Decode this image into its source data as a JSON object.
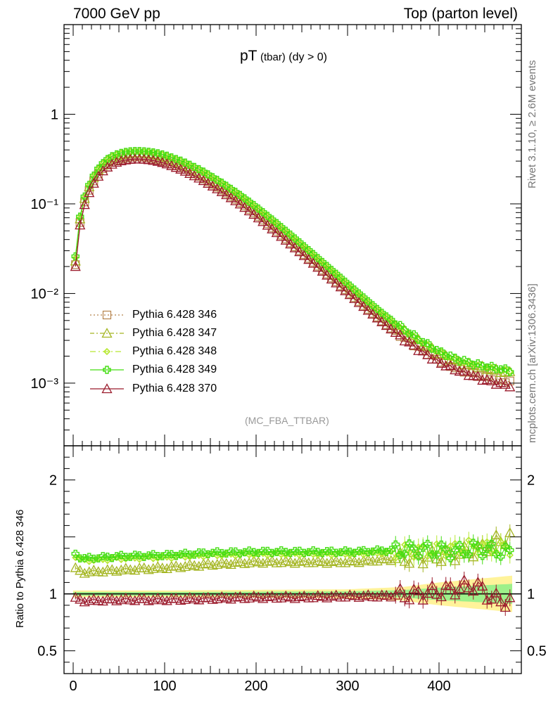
{
  "header": {
    "left": "7000 GeV pp",
    "right": "Top (parton level)"
  },
  "side_labels": {
    "rivet": "Rivet 3.1.10, ≥ 2.6M events",
    "mcplots": "mcplots.cern.ch [arXiv:1306.3436]"
  },
  "plot_title": {
    "main": "pT",
    "sub": "(tbar)",
    "rest": "(dy > 0)"
  },
  "analysis_tag": "(MC_FBA_TTBAR)",
  "chart_data": [
    {
      "type": "line",
      "panel": "main",
      "scale": "log",
      "ylim": [
        0.0002,
        10
      ],
      "xlim": [
        -10,
        490
      ],
      "grid": false,
      "legend_placement": "bottom-left",
      "y_ticks": [
        {
          "value": 1,
          "label": "1"
        },
        {
          "value": 0.1,
          "label": "10⁻¹"
        },
        {
          "value": 0.01,
          "label": "10⁻²"
        },
        {
          "value": 0.001,
          "label": "10⁻³"
        }
      ],
      "x_knots": [
        2.5,
        7.5,
        12.5,
        20,
        30,
        40,
        50,
        60,
        70,
        80,
        90,
        100,
        120,
        140,
        160,
        180,
        200,
        220,
        240,
        260,
        280,
        300,
        320,
        340,
        360,
        380,
        400,
        420,
        440,
        460,
        477.5
      ],
      "series": [
        {
          "name": "Pythia 6.428 346",
          "color": "#b5834a",
          "dash": "2,3",
          "marker": "square",
          "knot_values": [
            0.021,
            0.062,
            0.105,
            0.165,
            0.235,
            0.285,
            0.315,
            0.33,
            0.335,
            0.33,
            0.318,
            0.3,
            0.25,
            0.197,
            0.148,
            0.108,
            0.076,
            0.052,
            0.035,
            0.0235,
            0.0157,
            0.0105,
            0.007,
            0.0047,
            0.0033,
            0.0024,
            0.0018,
            0.00145,
            0.00125,
            0.00112,
            0.00102
          ]
        },
        {
          "name": "Pythia 6.428 347",
          "color": "#a3b520",
          "dash": "6,3,2,3",
          "marker": "triangle",
          "knot_values": [
            0.023,
            0.068,
            0.115,
            0.18,
            0.26,
            0.32,
            0.35,
            0.368,
            0.373,
            0.368,
            0.355,
            0.336,
            0.282,
            0.225,
            0.17,
            0.125,
            0.088,
            0.061,
            0.041,
            0.0275,
            0.0183,
            0.0122,
            0.0081,
            0.0055,
            0.0039,
            0.00285,
            0.00215,
            0.00175,
            0.00155,
            0.0014,
            0.0013
          ]
        },
        {
          "name": "Pythia 6.428 348",
          "color": "#b7e832",
          "dash": "8,4,2,4",
          "marker": "diamond",
          "knot_values": [
            0.025,
            0.07,
            0.118,
            0.185,
            0.266,
            0.328,
            0.36,
            0.378,
            0.384,
            0.379,
            0.366,
            0.347,
            0.292,
            0.233,
            0.176,
            0.129,
            0.091,
            0.063,
            0.0425,
            0.0284,
            0.0189,
            0.0126,
            0.0084,
            0.0057,
            0.004,
            0.0029,
            0.0022,
            0.0018,
            0.0016,
            0.00145,
            0.00135
          ]
        },
        {
          "name": "Pythia 6.428 349",
          "color": "#44dd12",
          "dash": "",
          "marker": "cross",
          "knot_values": [
            0.026,
            0.072,
            0.121,
            0.189,
            0.271,
            0.333,
            0.366,
            0.385,
            0.39,
            0.385,
            0.372,
            0.352,
            0.297,
            0.237,
            0.179,
            0.131,
            0.093,
            0.064,
            0.0433,
            0.029,
            0.0193,
            0.0129,
            0.0086,
            0.0058,
            0.0041,
            0.003,
            0.00225,
            0.00185,
            0.00162,
            0.00148,
            0.00138
          ]
        },
        {
          "name": "Pythia 6.428 370",
          "color": "#9b1b2c",
          "dash": "",
          "marker": "triangle",
          "knot_values": [
            0.02,
            0.058,
            0.098,
            0.155,
            0.222,
            0.27,
            0.298,
            0.312,
            0.317,
            0.313,
            0.302,
            0.285,
            0.238,
            0.188,
            0.142,
            0.104,
            0.073,
            0.05,
            0.0339,
            0.0228,
            0.0152,
            0.0102,
            0.0068,
            0.0046,
            0.0032,
            0.0023,
            0.00172,
            0.0014,
            0.00118,
            0.00102,
            0.00094
          ]
        }
      ]
    },
    {
      "type": "line",
      "panel": "ratio",
      "ylabel": "Ratio to Pythia 6.428 346",
      "ylim": [
        0.3,
        2.3
      ],
      "xlim": [
        -10,
        490
      ],
      "reference_line": 1,
      "y_ticks": [
        {
          "value": 0.5,
          "label": "0.5"
        },
        {
          "value": 1,
          "label": "1"
        },
        {
          "value": 2,
          "label": "2"
        }
      ],
      "x_ticks": [
        {
          "value": 0,
          "label": "0"
        },
        {
          "value": 100,
          "label": "100"
        },
        {
          "value": 200,
          "label": "200"
        },
        {
          "value": 300,
          "label": "300"
        },
        {
          "value": 400,
          "label": "400"
        }
      ],
      "band": {
        "color_outer": "#fff39a",
        "color_inner": "#9ef08a",
        "x_knots": [
          0,
          100,
          200,
          300,
          360,
          400,
          440,
          480
        ],
        "half_width": [
          0.03,
          0.03,
          0.035,
          0.04,
          0.06,
          0.1,
          0.13,
          0.16
        ]
      },
      "series": [
        {
          "name": "Pythia 6.428 347",
          "color": "#a3b520",
          "marker": "triangle",
          "x_knots": [
            2.5,
            10,
            50,
            100,
            150,
            200,
            250,
            300,
            340,
            380,
            400,
            420,
            440,
            460,
            477.5
          ],
          "knot_values": [
            1.22,
            1.19,
            1.21,
            1.23,
            1.26,
            1.28,
            1.28,
            1.28,
            1.3,
            1.32,
            1.33,
            1.35,
            1.38,
            1.45,
            1.5
          ]
        },
        {
          "name": "Pythia 6.428 348",
          "color": "#b7e832",
          "marker": "diamond",
          "x_knots": [
            2.5,
            10,
            50,
            100,
            150,
            200,
            250,
            300,
            340,
            380,
            400,
            420,
            440,
            460,
            477.5
          ],
          "knot_values": [
            1.33,
            1.29,
            1.31,
            1.32,
            1.34,
            1.35,
            1.35,
            1.35,
            1.36,
            1.38,
            1.38,
            1.4,
            1.42,
            1.4,
            1.4
          ]
        },
        {
          "name": "Pythia 6.428 349",
          "color": "#44dd12",
          "marker": "cross",
          "x_knots": [
            2.5,
            10,
            50,
            100,
            150,
            200,
            250,
            300,
            340,
            380,
            400,
            420,
            440,
            460,
            477.5
          ],
          "knot_values": [
            1.35,
            1.31,
            1.33,
            1.34,
            1.36,
            1.37,
            1.37,
            1.37,
            1.38,
            1.39,
            1.38,
            1.37,
            1.4,
            1.38,
            1.36
          ]
        },
        {
          "name": "Pythia 6.428 370",
          "color": "#9b1b2c",
          "marker": "triangle",
          "x_knots": [
            2.5,
            10,
            50,
            100,
            150,
            200,
            250,
            300,
            340,
            380,
            400,
            420,
            440,
            460,
            477.5
          ],
          "knot_values": [
            0.96,
            0.94,
            0.95,
            0.95,
            0.96,
            0.97,
            0.97,
            0.98,
            0.98,
            1.0,
            1.02,
            1.05,
            1.08,
            0.95,
            0.93
          ]
        }
      ]
    }
  ]
}
